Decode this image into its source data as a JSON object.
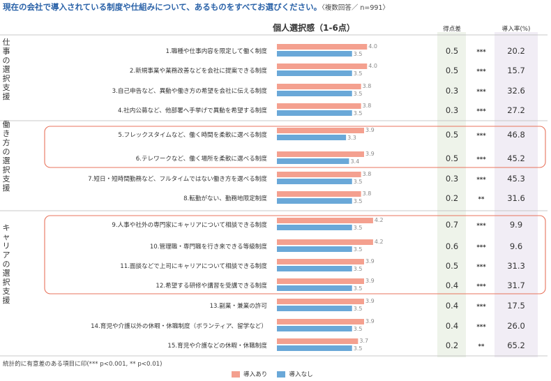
{
  "title": "現在の会社で導入されている制度や仕組みについて、あるものをすべてお選びください。",
  "subtitle": "〈複数回答／ n=991〉",
  "headers": {
    "personal_choice": "個人選択感（1-6点）",
    "score_diff": "得点差",
    "adoption_rate": "導入率(%)"
  },
  "groups": [
    {
      "label": "仕事の選択支援",
      "chars": [
        "仕",
        "事",
        "の",
        "選",
        "択",
        "支",
        "援"
      ]
    },
    {
      "label": "働き方の選択支援",
      "chars": [
        "働",
        "き",
        "方",
        "の",
        "選",
        "択",
        "支",
        "援"
      ]
    },
    {
      "label": "キャリアの選択支援",
      "chars": [
        "キ",
        "ャ",
        "リ",
        "ア",
        "の",
        "選",
        "択",
        "支",
        "援"
      ]
    }
  ],
  "footnote": "統計的に有意差のある項目に印(*** p<0.001, ** p<0.01)",
  "colors": {
    "with": "#f4a08f",
    "without": "#6aa8d8",
    "score_bg": "#eef3ea",
    "rate_bg": "#f1edf5",
    "highlight": "#e8735c",
    "title": "#2a62a8"
  },
  "chart_data": {
    "type": "bar",
    "orientation": "horizontal",
    "title": "個人選択感（1-6点）",
    "categories": [
      "1.職種や仕事内容を限定して働く制度",
      "2.新規事業や業務改善などを会社に提案できる制度",
      "3.自己申告など、異動や働き方の希望を会社に伝える制度",
      "4.社内公募など、他部署へ手挙げで異動を希望する制度",
      "5.フレックスタイムなど、働く時間を柔軟に選べる制度",
      "6.テレワークなど、働く場所を柔軟に選べる制度",
      "7.短日・短時間勤務など、フルタイムではない働き方を選べる制度",
      "8.転勤がない、勤務地限定制度",
      "9.人事や社外の専門家にキャリアについて相談できる制度",
      "10.管理職・専門職を行き来できる等級制度",
      "11.面談などで上司にキャリアについて相談できる制度",
      "12.希望する研修や講習を受講できる制度",
      "13.副業・兼業の許可",
      "14.育児や介護以外の休暇・休職制度（ボランティア、留学など）",
      "15.育児や介護などの休暇・休職制度"
    ],
    "series": [
      {
        "name": "導入あり",
        "values": [
          4.0,
          4.0,
          3.8,
          3.8,
          3.9,
          3.9,
          3.8,
          3.8,
          4.2,
          4.2,
          3.9,
          3.9,
          3.9,
          3.9,
          3.7
        ]
      },
      {
        "name": "導入なし",
        "values": [
          3.5,
          3.5,
          3.5,
          3.5,
          3.3,
          3.4,
          3.5,
          3.5,
          3.5,
          3.5,
          3.5,
          3.5,
          3.5,
          3.5,
          3.5
        ]
      }
    ],
    "score_diff": [
      "0.5",
      "0.5",
      "0.3",
      "0.3",
      "0.5",
      "0.5",
      "0.3",
      "0.2",
      "0.7",
      "0.6",
      "0.5",
      "0.4",
      "0.4",
      "0.4",
      "0.2"
    ],
    "significance": [
      "***",
      "***",
      "***",
      "***",
      "***",
      "***",
      "***",
      "**",
      "***",
      "***",
      "***",
      "***",
      "***",
      "***",
      "**"
    ],
    "adoption_rate": [
      "20.2",
      "15.7",
      "32.6",
      "27.2",
      "46.8",
      "45.2",
      "45.3",
      "31.6",
      "9.9",
      "9.6",
      "31.3",
      "31.7",
      "17.5",
      "26.0",
      "65.2"
    ],
    "highlight_items": [
      [
        5,
        6
      ],
      [
        9,
        10,
        11,
        12
      ]
    ],
    "xlim": [
      1,
      6
    ],
    "legend": "bottom"
  }
}
